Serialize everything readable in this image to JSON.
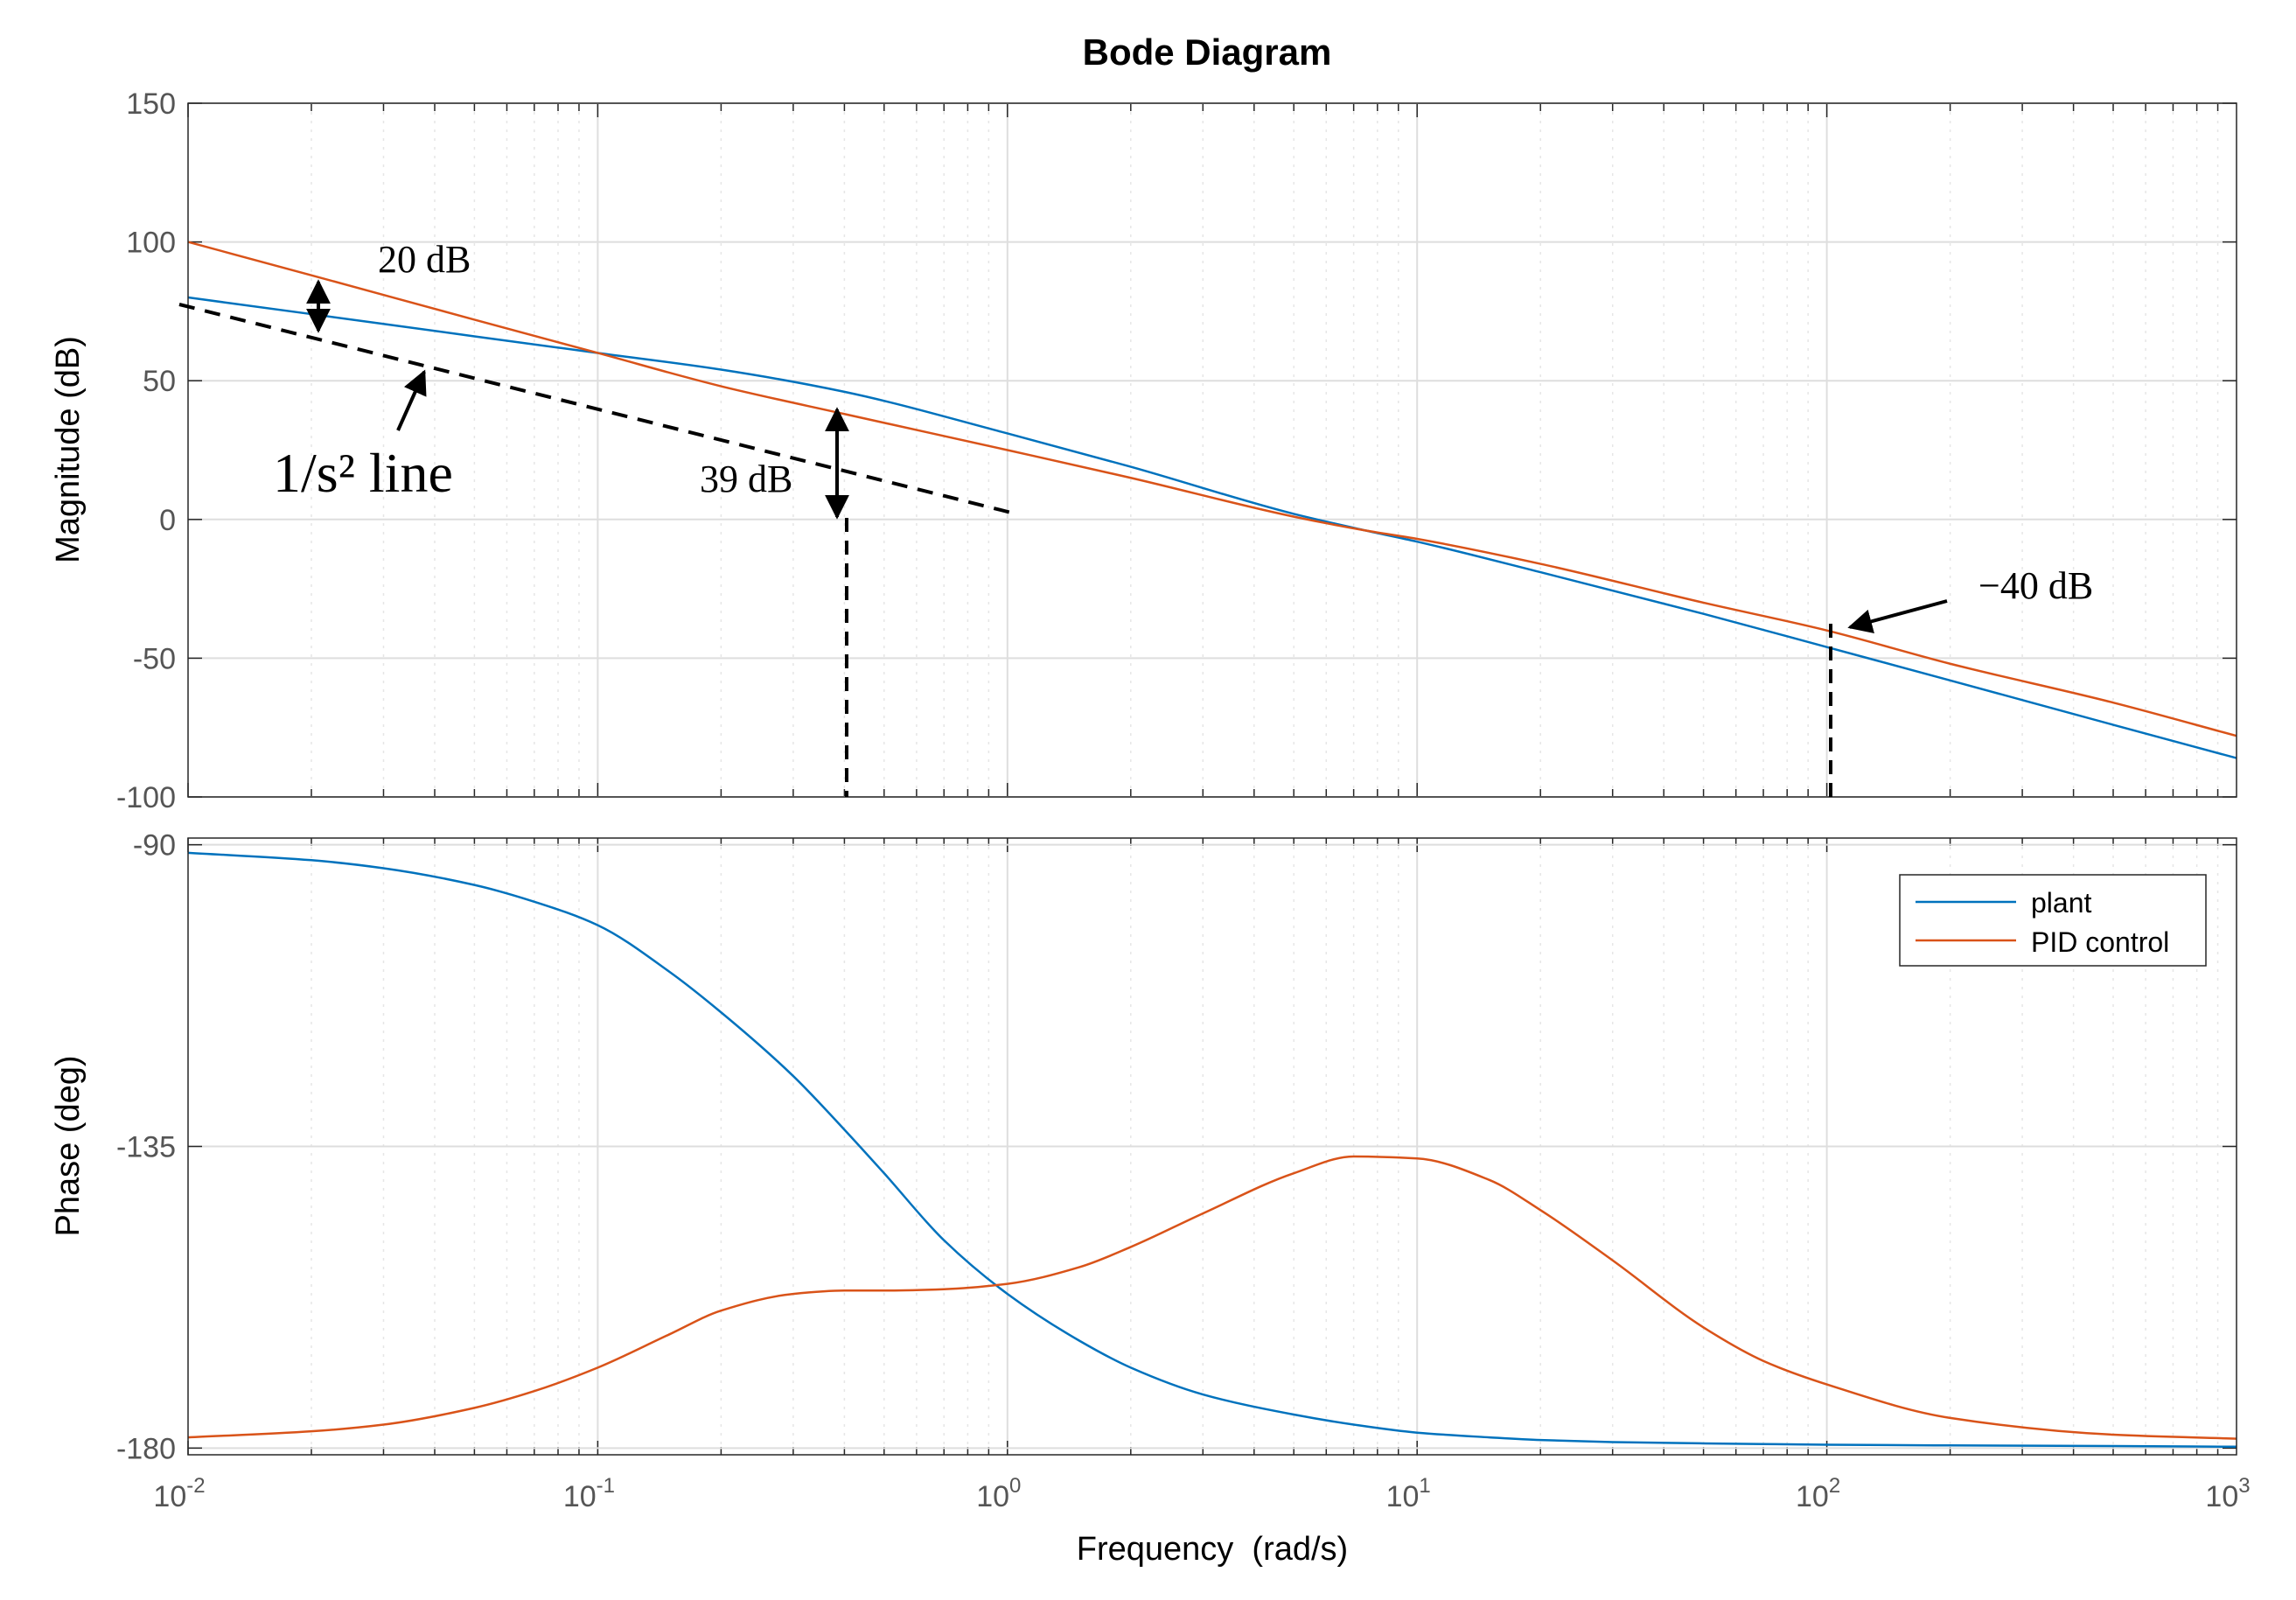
{
  "chart_data": {
    "type": "line",
    "title": "Bode Diagram",
    "xlabel": "Frequency  (rad/s)",
    "xscale": "log",
    "xlim": [
      0.01,
      1000
    ],
    "x_tick_labels": [
      {
        "base": "10",
        "exp": "-2"
      },
      {
        "base": "10",
        "exp": "-1"
      },
      {
        "base": "10",
        "exp": "0"
      },
      {
        "base": "10",
        "exp": "1"
      },
      {
        "base": "10",
        "exp": "2"
      },
      {
        "base": "10",
        "exp": "3"
      }
    ],
    "grid": true,
    "colors": {
      "plant": "#0072BD",
      "pid": "#D95319"
    },
    "legend": {
      "placement": "top-right",
      "entries": [
        "plant",
        "PID control"
      ]
    },
    "panels": [
      {
        "name": "magnitude",
        "ylabel": "Magnitude (dB)",
        "ylim": [
          -100,
          150
        ],
        "yticks": [
          "-100",
          "-50",
          "0",
          "50",
          "100",
          "150"
        ],
        "x": [
          0.01,
          0.02,
          0.05,
          0.1,
          0.2,
          0.4,
          1,
          2,
          5,
          7.5,
          10,
          20,
          50,
          100,
          200,
          500,
          1000
        ],
        "series": [
          {
            "name": "plant",
            "values": [
              80,
              74,
              66,
              60,
              54,
              46,
              31,
              19,
              2,
              -4,
              -8,
              -19,
              -34,
              -46,
              -58,
              -74,
              -86
            ]
          },
          {
            "name": "PID control",
            "values": [
              100,
              88,
              72,
              60,
              48,
              38,
              25,
              15,
              1,
              -4,
              -7,
              -16,
              -30,
              -40,
              -52,
              -66,
              -78
            ]
          }
        ]
      },
      {
        "name": "phase",
        "ylabel": "Phase (deg)",
        "ylim": [
          -181,
          -89
        ],
        "yticks": [
          "-180",
          "-135",
          "-90"
        ],
        "x": [
          0.01,
          0.02,
          0.03,
          0.05,
          0.07,
          0.1,
          0.15,
          0.2,
          0.3,
          0.4,
          0.5,
          0.7,
          1,
          1.5,
          2,
          3,
          5,
          7,
          10,
          15,
          20,
          30,
          50,
          70,
          100,
          200,
          500,
          1000
        ],
        "series": [
          {
            "name": "plant",
            "values": [
              -91.2,
              -92.3,
              -93.5,
              -96,
              -98.5,
              -102,
              -109,
              -115,
              -124.5,
              -132.5,
              -139,
              -149,
              -157,
              -164,
              -168,
              -172,
              -175,
              -176.5,
              -177.7,
              -178.4,
              -178.8,
              -179.1,
              -179.3,
              -179.4,
              -179.5,
              -179.6,
              -179.7,
              -179.8
            ]
          },
          {
            "name": "PID control",
            "values": [
              -178.4,
              -177.5,
              -176.5,
              -174,
              -171.5,
              -168,
              -163,
              -159.5,
              -157,
              -156.5,
              -156.5,
              -156.3,
              -155.5,
              -153,
              -150,
              -145,
              -139,
              -136.5,
              -136.8,
              -140,
              -144.5,
              -152,
              -162,
              -167,
              -170.5,
              -175.5,
              -178,
              -178.6
            ]
          }
        ]
      }
    ],
    "annotations": [
      {
        "text": "20 dB",
        "x": 0.02,
        "y_top": 88,
        "y_bottom": 67,
        "panel": "magnitude"
      },
      {
        "text": "1/s² line",
        "line_from": [
          0.01,
          77
        ],
        "line_to": [
          1,
          1
        ],
        "panel": "magnitude"
      },
      {
        "text": "39 dB",
        "x": 0.4,
        "y_top": 40,
        "y_bottom": 1,
        "panel": "magnitude"
      },
      {
        "text": "−40 dB",
        "x": 100,
        "y": -40,
        "panel": "magnitude"
      }
    ]
  }
}
